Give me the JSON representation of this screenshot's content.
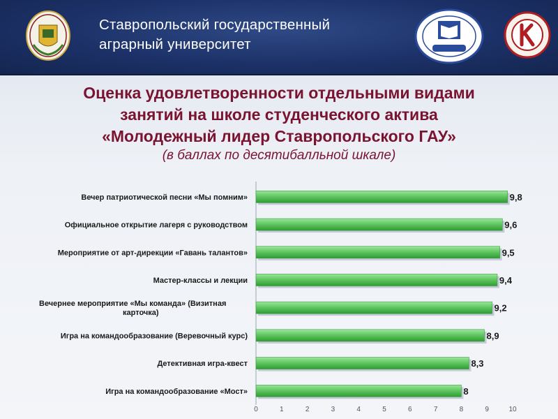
{
  "header": {
    "title_line1": "Ставропольский государственный",
    "title_line2": "аграрный университет"
  },
  "colors": {
    "header_bg": "#1c3168",
    "title": "#7a1330",
    "bar": "#62c862",
    "bar_dark": "#2f9b34"
  },
  "chart_data": {
    "type": "bar",
    "orientation": "horizontal",
    "title_lines": [
      "Оценка удовлетворенности отдельными видами",
      "занятий на школе студенческого актива",
      "«Молодежный лидер Ставропольского ГАУ»"
    ],
    "subtitle": "(в баллах по десятибалльной шкале)",
    "categories": [
      [
        "Вечер патриотической песни «Мы помним»"
      ],
      [
        "Официальное открытие лагеря с руководством"
      ],
      [
        "Мероприятие от арт-дирекции «Гавань талантов»"
      ],
      [
        "Мастер-классы и лекции"
      ],
      [
        "Вечернее мероприятие «Мы команда» (Визитная",
        "карточка)"
      ],
      [
        "Игра на командообразование (Веревочный курс)"
      ],
      [
        "Детективная игра-квест"
      ],
      [
        "Игра на командообразование «Мост»"
      ]
    ],
    "values": [
      9.8,
      9.6,
      9.5,
      9.4,
      9.2,
      8.9,
      8.3,
      8
    ],
    "value_labels": [
      "9,8",
      "9,6",
      "9,5",
      "9,4",
      "9,2",
      "8,9",
      "8,3",
      "8"
    ],
    "x_ticks": [
      "0",
      "1",
      "2",
      "3",
      "4",
      "5",
      "6",
      "7",
      "8",
      "9",
      "10"
    ],
    "xlim": [
      0,
      10
    ],
    "grid": false,
    "legend": "none"
  }
}
